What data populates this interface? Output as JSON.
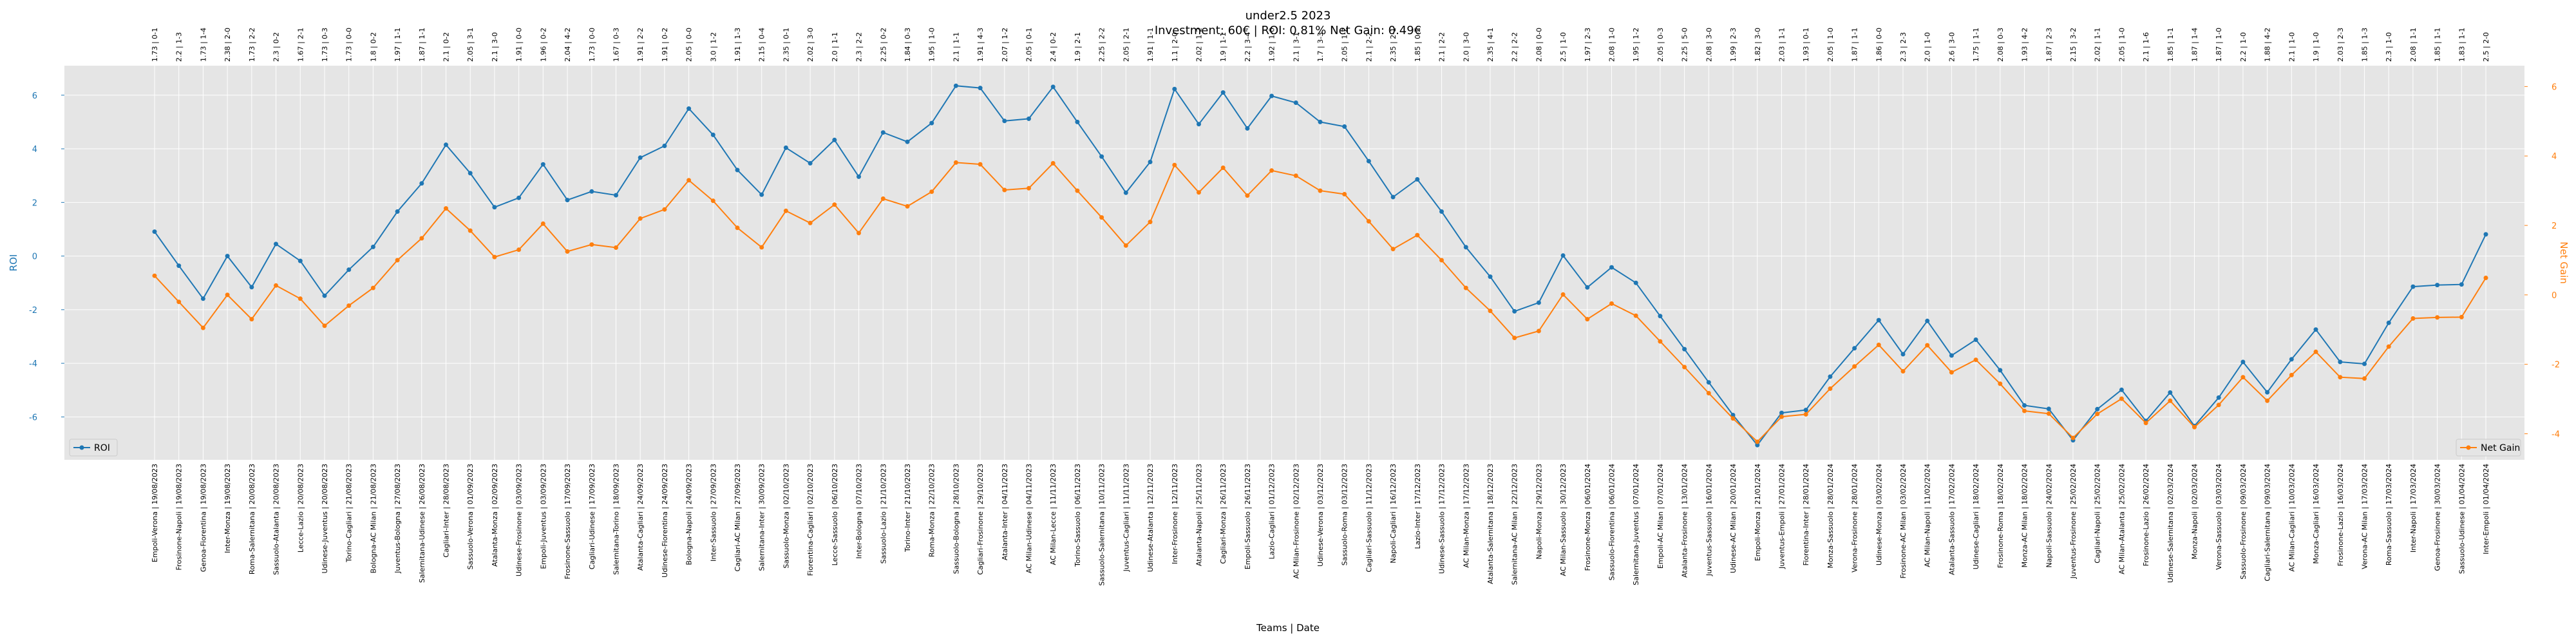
{
  "chart_data": {
    "type": "line",
    "title": "under2.5 2023",
    "subtitle": "Investment: 60€ | ROI: 0.81% Net Gain: 0.49€",
    "xlabel": "Teams | Date",
    "ylabel_left": "ROI",
    "ylabel_right": "Net Gain",
    "ylim_left": [
      -7.6,
      7.1
    ],
    "ylim_right": [
      -4.75,
      6.6
    ],
    "yticks_left": [
      -6,
      -4,
      -2,
      0,
      2,
      4,
      6
    ],
    "yticks_right": [
      -4,
      -2,
      0,
      2,
      4,
      6
    ],
    "grid": true,
    "background": "#e5e5e5",
    "legend_left": "bottom-left",
    "legend_right": "bottom-right",
    "colors": {
      "roi": "#1f77b4",
      "net_gain": "#ff7f0e"
    },
    "categories": [
      "Empoli-Verona | 19/08/2023",
      "Frosinone-Napoli | 19/08/2023",
      "Genoa-Fiorentina | 19/08/2023",
      "Inter-Monza | 19/08/2023",
      "Roma-Salernitana | 20/08/2023",
      "Sassuolo-Atalanta | 20/08/2023",
      "Lecce-Lazio | 20/08/2023",
      "Udinese-Juventus | 20/08/2023",
      "Torino-Cagliari | 21/08/2023",
      "Bologna-AC Milan | 21/08/2023",
      "Juventus-Bologna | 27/08/2023",
      "Salernitana-Udinese | 26/08/2023",
      "Cagliari-Inter | 28/08/2023",
      "Sassuolo-Verona | 01/09/2023",
      "Atalanta-Monza | 02/09/2023",
      "Udinese-Frosinone | 03/09/2023",
      "Empoli-Juventus | 03/09/2023",
      "Frosinone-Sassuolo | 17/09/2023",
      "Cagliari-Udinese | 17/09/2023",
      "Salernitana-Torino | 18/09/2023",
      "Atalanta-Cagliari | 24/09/2023",
      "Udinese-Fiorentina | 24/09/2023",
      "Bologna-Napoli | 24/09/2023",
      "Inter-Sassuolo | 27/09/2023",
      "Cagliari-AC Milan | 27/09/2023",
      "Salernitana-Inter | 30/09/2023",
      "Sassuolo-Monza | 02/10/2023",
      "Fiorentina-Cagliari | 02/10/2023",
      "Lecce-Sassuolo | 06/10/2023",
      "Inter-Bologna | 07/10/2023",
      "Sassuolo-Lazio | 21/10/2023",
      "Torino-Inter | 21/10/2023",
      "Roma-Monza | 22/10/2023",
      "Sassuolo-Bologna | 28/10/2023",
      "Cagliari-Frosinone | 29/10/2023",
      "Atalanta-Inter | 04/11/2023",
      "AC Milan-Udinese | 04/11/2023",
      "AC Milan-Lecce | 11/11/2023",
      "Torino-Sassuolo | 06/11/2023",
      "Sassuolo-Salernitana | 10/11/2023",
      "Juventus-Cagliari | 11/11/2023",
      "Udinese-Atalanta | 12/11/2023",
      "Inter-Frosinone | 12/11/2023",
      "Atalanta-Napoli | 25/11/2023",
      "Cagliari-Monza | 26/11/2023",
      "Empoli-Sassuolo | 26/11/2023",
      "Lazio-Cagliari | 01/12/2023",
      "AC Milan-Frosinone | 02/12/2023",
      "Udinese-Verona | 03/12/2023",
      "Sassuolo-Roma | 03/12/2023",
      "Cagliari-Sassuolo | 11/12/2023",
      "Napoli-Cagliari | 16/12/2023",
      "Lazio-Inter | 17/12/2023",
      "Udinese-Sassuolo | 17/12/2023",
      "AC Milan-Monza | 17/12/2023",
      "Atalanta-Salernitana | 18/12/2023",
      "Salernitana-AC Milan | 22/12/2023",
      "Napoli-Monza | 29/12/2023",
      "AC Milan-Sassuolo | 30/12/2023",
      "Frosinone-Monza | 06/01/2024",
      "Sassuolo-Fiorentina | 06/01/2024",
      "Salernitana-Juventus | 07/01/2024",
      "Empoli-AC Milan | 07/01/2024",
      "Atalanta-Frosinone | 13/01/2024",
      "Juventus-Sassuolo | 16/01/2024",
      "Udinese-AC Milan | 20/01/2024",
      "Empoli-Monza | 21/01/2024",
      "Juventus-Empoli | 27/01/2024",
      "Fiorentina-Inter | 28/01/2024",
      "Monza-Sassuolo | 28/01/2024",
      "Verona-Frosinone | 28/01/2024",
      "Udinese-Monza | 03/02/2024",
      "Frosinone-AC Milan | 03/02/2024",
      "AC Milan-Napoli | 11/02/2024",
      "Atalanta-Sassuolo | 17/02/2024",
      "Udinese-Cagliari | 18/02/2024",
      "Frosinone-Roma | 18/02/2024",
      "Monza-AC Milan | 18/02/2024",
      "Napoli-Sassuolo | 24/02/2024",
      "Juventus-Frosinone | 25/02/2024",
      "Cagliari-Napoli | 25/02/2024",
      "AC Milan-Atalanta | 25/02/2024",
      "Frosinone-Lazio | 26/02/2024",
      "Udinese-Salernitana | 02/03/2024",
      "Monza-Napoli | 02/03/2024",
      "Verona-Sassuolo | 03/03/2024",
      "Sassuolo-Frosinone | 09/03/2024",
      "Cagliari-Salernitana | 09/03/2024",
      "AC Milan-Cagliari | 10/03/2024",
      "Monza-Cagliari | 16/03/2024",
      "Frosinone-Lazio | 16/03/2024",
      "Verona-AC Milan | 17/03/2024",
      "Roma-Sassuolo | 17/03/2024",
      "Inter-Napoli | 17/03/2024",
      "Genoa-Frosinone | 30/03/2024",
      "Sassuolo-Udinese | 01/04/2024",
      "Inter-Empoli | 01/04/2024"
    ],
    "top_labels": [
      "1.73 | 0-1",
      "2.2 | 1-3",
      "1.73 | 1-4",
      "2.38 | 2-0",
      "1.73 | 2-2",
      "2.3 | 0-2",
      "1.67 | 2-1",
      "1.73 | 0-3",
      "1.73 | 0-0",
      "1.8 | 0-2",
      "1.97 | 1-1",
      "1.87 | 1-1",
      "2.1 | 0-2",
      "2.05 | 3-1",
      "2.1 | 3-0",
      "1.91 | 0-0",
      "1.96 | 0-2",
      "2.04 | 4-2",
      "1.73 | 0-0",
      "1.67 | 0-3",
      "1.91 | 2-2",
      "1.91 | 0-2",
      "2.05 | 0-0",
      "3.0 | 1-2",
      "1.91 | 1-3",
      "2.15 | 0-4",
      "2.35 | 0-1",
      "2.02 | 3-0",
      "2.0 | 1-1",
      "2.3 | 2-2",
      "2.25 | 0-2",
      "1.84 | 0-3",
      "1.95 | 1-0",
      "2.1 | 1-1",
      "1.91 | 4-3",
      "2.07 | 1-2",
      "2.05 | 0-1",
      "2.4 | 0-2",
      "1.9 | 2-1",
      "2.25 | 2-2",
      "2.05 | 2-1",
      "1.91 | 1-1",
      "1.1 | 2-0",
      "2.02 | 1-2",
      "1.9 | 1-1",
      "2.2 | 3-4",
      "1.92 | 1-0",
      "2.1 | 3-1",
      "1.7 | 3-3",
      "2.05 | 1-2",
      "2.1 | 2-2",
      "2.35 | 2-1",
      "1.85 | 0-2",
      "2.1 | 2-2",
      "2.0 | 3-0",
      "2.35 | 4-1",
      "2.2 | 2-2",
      "2.08 | 0-0",
      "2.5 | 1-0",
      "1.97 | 2-3",
      "2.08 | 1-0",
      "1.95 | 1-2",
      "2.05 | 0-3",
      "2.25 | 5-0",
      "2.08 | 3-0",
      "1.99 | 2-3",
      "1.82 | 3-0",
      "2.03 | 1-1",
      "1.93 | 0-1",
      "2.05 | 1-0",
      "1.87 | 1-1",
      "1.86 | 0-0",
      "2.3 | 2-3",
      "2.0 | 1-0",
      "2.6 | 3-0",
      "1.75 | 1-1",
      "2.08 | 0-3",
      "1.93 | 4-2",
      "1.87 | 2-3",
      "2.15 | 3-2",
      "2.02 | 1-1",
      "2.05 | 1-0",
      "2.1 | 1-6",
      "1.85 | 1-1",
      "1.87 | 1-4",
      "1.87 | 1-0",
      "2.2 | 1-0",
      "1.88 | 4-2",
      "2.1 | 1-0",
      "1.9 | 1-0",
      "2.03 | 2-3",
      "1.85 | 1-3",
      "2.3 | 1-0",
      "2.08 | 1-1",
      "1.85 | 1-1",
      "1.83 | 1-1",
      "2.5 | 2-0"
    ],
    "series": [
      {
        "name": "ROI",
        "axis": "left",
        "values": [
          0.91,
          -0.36,
          -1.59,
          0.0,
          -1.16,
          0.45,
          -0.18,
          -1.48,
          -0.51,
          0.34,
          1.66,
          2.71,
          4.15,
          3.09,
          1.82,
          2.17,
          3.42,
          2.09,
          2.41,
          2.27,
          3.67,
          4.11,
          5.5,
          4.52,
          3.21,
          2.29,
          4.04,
          3.46,
          4.33,
          2.96,
          4.61,
          4.26,
          4.96,
          6.35,
          6.27,
          5.04,
          5.12,
          6.31,
          5.0,
          3.71,
          2.36,
          3.51,
          6.23,
          4.92,
          6.1,
          4.76,
          5.97,
          5.72,
          5.0,
          4.83,
          3.54,
          2.2,
          2.86,
          1.66,
          0.33,
          -0.77,
          -2.06,
          -1.74,
          0.02,
          -1.17,
          -0.42,
          -1.0,
          -2.24,
          -3.47,
          -4.71,
          -5.93,
          -7.05,
          -5.85,
          -5.74,
          -4.5,
          -3.44,
          -2.39,
          -3.66,
          -2.42,
          -3.71,
          -3.12,
          -4.26,
          -5.57,
          -5.7,
          -6.87,
          -5.71,
          -4.99,
          -6.15,
          -5.09,
          -6.34,
          -5.28,
          -3.95,
          -5.08,
          -3.85,
          -2.74,
          -3.95,
          -4.02,
          -2.49,
          -1.14,
          -1.08,
          -1.06,
          0.81
        ]
      },
      {
        "name": "Net Gain",
        "axis": "right",
        "values": [
          0.55,
          -0.2,
          -0.95,
          0.0,
          -0.7,
          0.27,
          -0.11,
          -0.89,
          -0.31,
          0.2,
          1.0,
          1.63,
          2.49,
          1.85,
          1.09,
          1.3,
          2.05,
          1.25,
          1.45,
          1.36,
          2.2,
          2.46,
          3.3,
          2.71,
          1.93,
          1.37,
          2.42,
          2.07,
          2.6,
          1.78,
          2.77,
          2.55,
          2.97,
          3.81,
          3.76,
          3.02,
          3.07,
          3.79,
          3.0,
          2.23,
          1.42,
          2.1,
          3.74,
          2.95,
          3.66,
          2.86,
          3.58,
          3.43,
          3.0,
          2.9,
          2.12,
          1.32,
          1.72,
          1.0,
          0.2,
          -0.46,
          -1.24,
          -1.04,
          0.01,
          -0.7,
          -0.25,
          -0.6,
          -1.34,
          -2.08,
          -2.83,
          -3.56,
          -4.23,
          -3.51,
          -3.44,
          -2.7,
          -2.06,
          -1.44,
          -2.2,
          -1.45,
          -2.23,
          -1.87,
          -2.56,
          -3.34,
          -3.42,
          -4.12,
          -3.43,
          -2.99,
          -3.69,
          -3.05,
          -3.81,
          -3.17,
          -2.37,
          -3.05,
          -2.31,
          -1.64,
          -2.37,
          -2.41,
          -1.49,
          -0.68,
          -0.65,
          -0.64,
          0.49
        ]
      }
    ]
  }
}
